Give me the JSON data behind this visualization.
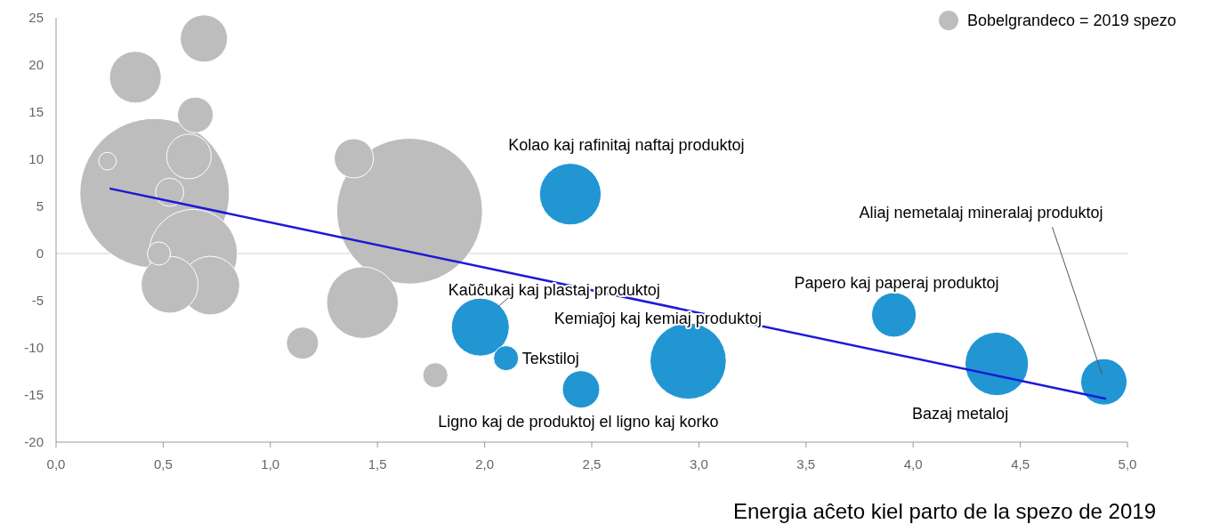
{
  "chart_data": {
    "type": "bubble",
    "xlabel": "Energia aĉeto kiel parto de la spezo de 2019",
    "xlim": [
      0,
      5
    ],
    "xticks": [
      {
        "value": 0,
        "label": "0,0"
      },
      {
        "value": 0.5,
        "label": "0,5"
      },
      {
        "value": 1,
        "label": "1,0"
      },
      {
        "value": 1.5,
        "label": "1,5"
      },
      {
        "value": 2,
        "label": "2,0"
      },
      {
        "value": 2.5,
        "label": "2,5"
      },
      {
        "value": 3,
        "label": "3,0"
      },
      {
        "value": 3.5,
        "label": "3,5"
      },
      {
        "value": 4,
        "label": "4,0"
      },
      {
        "value": 4.5,
        "label": "4,5"
      },
      {
        "value": 5,
        "label": "5,0"
      }
    ],
    "ylim": [
      -20,
      25
    ],
    "yticks": [
      -20,
      -15,
      -10,
      -5,
      0,
      5,
      10,
      15,
      20,
      25
    ],
    "grid": false,
    "legend": "top right",
    "ref_lines": [
      {
        "axis": "y",
        "value": 0,
        "color": "#e0e0e0"
      }
    ],
    "series": [
      {
        "name": "Bobelgrandeco = 2019 spezo",
        "color": "#bdbdbd",
        "x": [
          0.69,
          0.37,
          0.65,
          0.24,
          0.62,
          1.39,
          0.53,
          0.46,
          1.65,
          0.64,
          0.48,
          0.53,
          0.72,
          1.43,
          1.15,
          1.77
        ],
        "values": [
          22.8,
          18.7,
          14.7,
          9.8,
          10.3,
          10.1,
          6.5,
          6.4,
          4.5,
          0,
          0,
          -3.3,
          -3.4,
          -5.2,
          -9.5,
          -12.9
        ],
        "sizes": [
          0.1,
          0.12,
          0.057,
          0.014,
          0.089,
          0.069,
          0.036,
          1,
          0.95,
          0.35,
          0.024,
          0.145,
          0.154,
          0.23,
          0.046,
          0.028
        ]
      },
      {
        "color": "#2196d3",
        "x": [
          2.4,
          1.98,
          2.1,
          2.45,
          2.95,
          3.91,
          4.39,
          4.89
        ],
        "values": [
          6.3,
          -7.8,
          -11.1,
          -14.4,
          -11.4,
          -6.5,
          -11.7,
          -13.6
        ],
        "sizes": [
          0.17,
          0.15,
          0.028,
          0.0625,
          0.26,
          0.089,
          0.18,
          0.096
        ]
      },
      {
        "type": "line",
        "color": "#1a1ad6",
        "x": [
          0.25,
          4.9
        ],
        "values": [
          6.9,
          -15.4
        ]
      }
    ],
    "annotations": [
      {
        "text": "Kolao kaj rafinitaj naftaj produktoj",
        "x": 2.4,
        "y": 6.3
      },
      {
        "text": "Kaŭĉukaj kaj plastaj produktoj",
        "x": 1.98,
        "y": -7.8
      },
      {
        "text": "Tekstiloj",
        "x": 2.1,
        "y": -11.1
      },
      {
        "text": "Ligno kaj de produktoj el ligno kaj korko",
        "x": 2.45,
        "y": -14.4
      },
      {
        "text": "Kemiaĵoj kaj kemiaj produktoj",
        "x": 2.95,
        "y": -11.4
      },
      {
        "text": "Papero kaj paperaj produktoj",
        "x": 3.91,
        "y": -6.5
      },
      {
        "text": "Bazaj metaloj",
        "x": 4.39,
        "y": -11.7
      },
      {
        "text": "Aliaj nemetalaj mineralaj produktoj",
        "x": 4.89,
        "y": -13.6
      }
    ]
  }
}
